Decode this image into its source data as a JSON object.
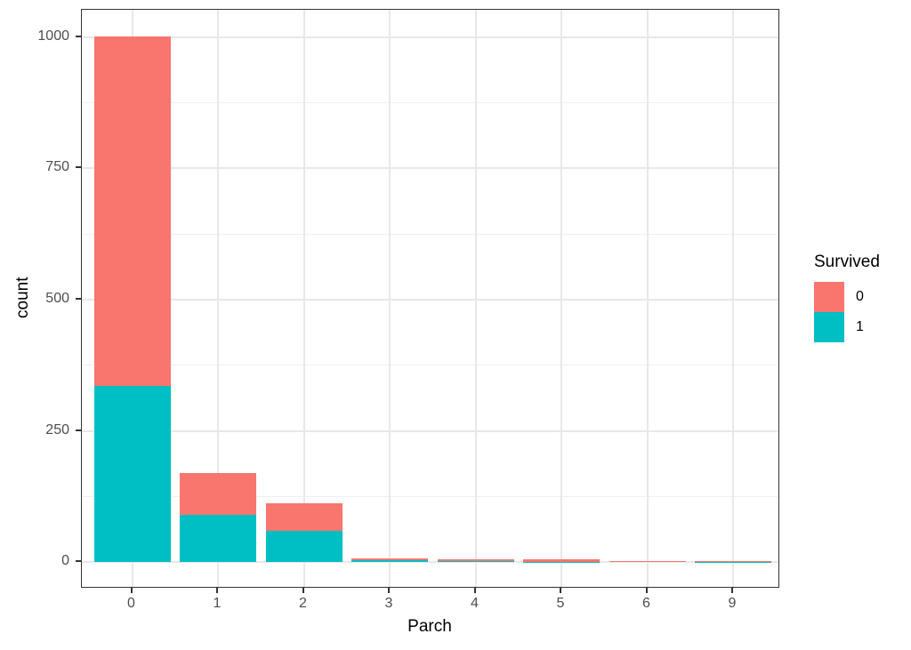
{
  "chart_data": {
    "type": "bar",
    "stacked": true,
    "stack_order": "first-series-on-top",
    "title": "",
    "xlabel": "Parch",
    "ylabel": "count",
    "categories": [
      "0",
      "1",
      "2",
      "3",
      "4",
      "5",
      "6",
      "9"
    ],
    "series": [
      {
        "name": "0",
        "color": "#F8766D",
        "values": [
          666,
          79,
          53,
          3,
          4,
          5,
          2,
          1
        ]
      },
      {
        "name": "1",
        "color": "#00BFC4",
        "values": [
          336,
          91,
          60,
          5,
          2,
          1,
          0,
          1
        ]
      }
    ],
    "totals": [
      1002,
      170,
      113,
      8,
      6,
      6,
      2,
      2
    ],
    "y_ticks": [
      0,
      250,
      500,
      750,
      1000
    ],
    "y_minor_ticks": [
      125,
      375,
      625,
      875
    ],
    "ylim": [
      -50,
      1052
    ],
    "grid": "horizontal major+minor, vertical major at categories",
    "legend": {
      "title": "Survived",
      "position": "right",
      "entries": [
        {
          "label": "0",
          "color": "#F8766D"
        },
        {
          "label": "1",
          "color": "#00BFC4"
        }
      ]
    },
    "colors": {
      "survived_0": "#F8766D",
      "survived_1": "#00BFC4",
      "panel_border": "#333333",
      "gridline": "#e8e8e8",
      "tick_text": "#4d4d4d",
      "axis_title_text": "#000000",
      "background": "#ffffff"
    }
  }
}
